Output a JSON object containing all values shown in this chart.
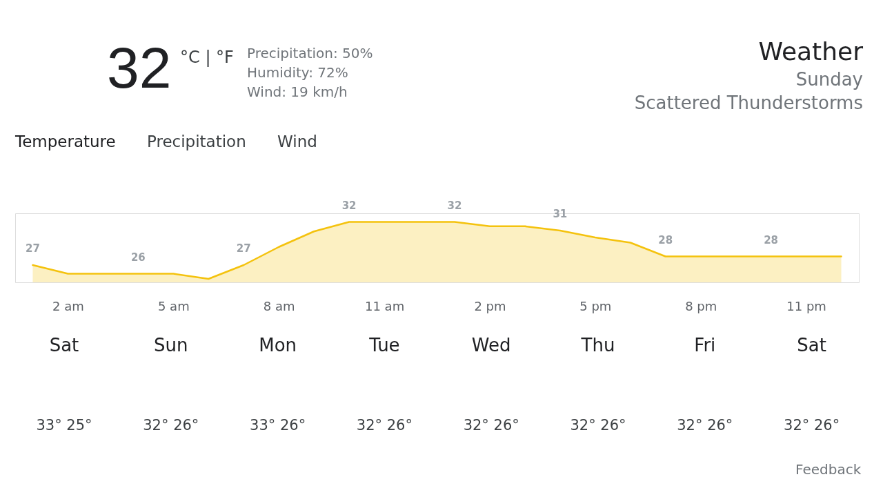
{
  "chart_data": {
    "type": "area",
    "title": "Weather",
    "subtitle": "Sunday",
    "categories": [
      null,
      "2 am",
      null,
      null,
      "5 am",
      null,
      null,
      "8 am",
      null,
      null,
      "11 am",
      null,
      null,
      "2 pm",
      null,
      null,
      "5 pm",
      null,
      null,
      "8 pm",
      null,
      null,
      "11 pm",
      null
    ],
    "series": [
      {
        "color": "#f4c20d",
        "values": [
          27,
          26,
          26,
          26,
          26,
          25.4,
          27,
          29.1,
          30.9,
          32,
          32,
          32,
          32,
          31.5,
          31.5,
          31,
          30.2,
          29.6,
          28,
          28,
          28,
          28,
          28,
          28
        ],
        "value_labels": [
          "27",
          null,
          null,
          "26",
          null,
          null,
          "27",
          null,
          null,
          "32",
          null,
          null,
          "32",
          null,
          null,
          "31",
          null,
          null,
          "28",
          null,
          null,
          "28",
          null,
          null
        ]
      }
    ],
    "ylim": [
      25,
      33
    ],
    "tick_labels": "x",
    "annotations": [
      "32",
      "°C | °F",
      "Precipitation: 50%",
      "Humidity: 72%",
      "Wind: 19 km/h",
      "Scattered Thunderstorms",
      "Temperature",
      "Precipitation",
      "Wind",
      "Sat",
      "Sun",
      "Mon",
      "Tue",
      "Wed",
      "Thu",
      "Fri",
      "Sat",
      "33° 25°",
      "32° 26°",
      "33° 26°",
      "32° 26°",
      "32° 26°",
      "32° 26°",
      "32° 26°",
      "32° 26°",
      "Feedback"
    ]
  }
}
